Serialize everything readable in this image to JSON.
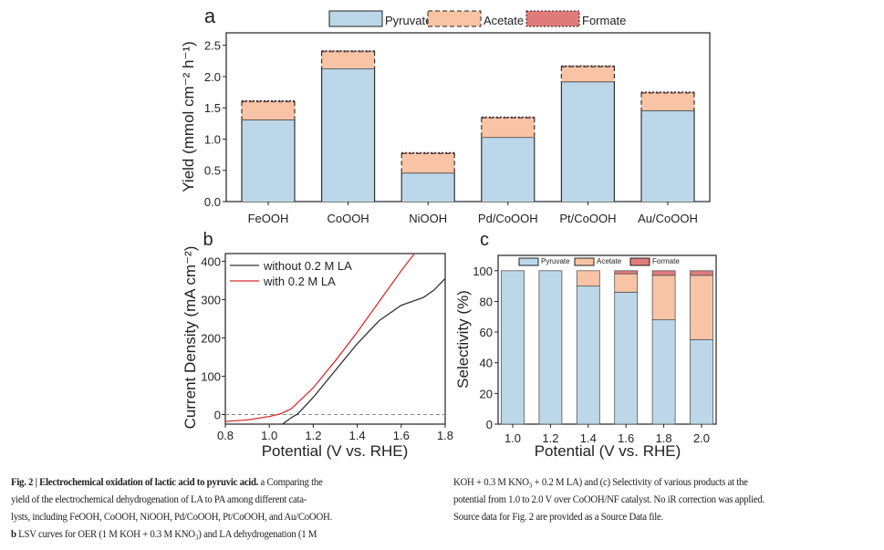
{
  "chart_data": [
    {
      "panel": "a",
      "type": "bar",
      "stacked": true,
      "categories": [
        "FeOOH",
        "CoOOH",
        "NiOOH",
        "Pd/CoOOH",
        "Pt/CoOOH",
        "Au/CoOOH"
      ],
      "series": [
        {
          "name": "Pyruvate",
          "values": [
            1.31,
            2.13,
            0.46,
            1.03,
            1.92,
            1.46
          ],
          "color": "#bcd8e8"
        },
        {
          "name": "Acetate",
          "values": [
            0.29,
            0.27,
            0.31,
            0.31,
            0.24,
            0.28
          ],
          "color": "#f9c4a6"
        },
        {
          "name": "Formate",
          "values": [
            0.01,
            0.01,
            0.01,
            0.01,
            0.01,
            0.01
          ],
          "color": "#e07b7b"
        }
      ],
      "ylabel": "Yield (mmol cm⁻² h⁻¹)",
      "ylim": [
        0,
        2.7
      ],
      "yticks": [
        "0.0",
        "0.5",
        "1.0",
        "1.5",
        "2.0",
        "2.5"
      ],
      "legend": "top"
    },
    {
      "panel": "b",
      "type": "line",
      "xlabel": "Potential (V vs. RHE)",
      "ylabel": "Current Density (mA cm⁻²)",
      "xlim": [
        0.8,
        1.8
      ],
      "ylim": [
        -25,
        420
      ],
      "xticks": [
        "0.8",
        "1.0",
        "1.2",
        "1.4",
        "1.6",
        "1.8"
      ],
      "yticks": [
        "0",
        "100",
        "200",
        "300",
        "400"
      ],
      "reference_line": 0,
      "legend": "top-left",
      "series": [
        {
          "name": "without 0.2 M LA",
          "color": "#333333",
          "x": [
            1.06,
            1.1,
            1.13,
            1.2,
            1.3,
            1.4,
            1.5,
            1.6,
            1.7,
            1.75,
            1.8
          ],
          "y": [
            -25,
            -8,
            2,
            45,
            115,
            185,
            245,
            285,
            305,
            325,
            355
          ]
        },
        {
          "name": "with 0.2 M LA",
          "color": "#d62f2f",
          "x": [
            0.8,
            0.9,
            1.0,
            1.05,
            1.1,
            1.2,
            1.3,
            1.4,
            1.5,
            1.6,
            1.66
          ],
          "y": [
            -18,
            -14,
            -5,
            2,
            15,
            70,
            140,
            215,
            295,
            375,
            420
          ]
        }
      ]
    },
    {
      "panel": "c",
      "type": "bar",
      "stacked": true,
      "categories": [
        "1.0",
        "1.2",
        "1.4",
        "1.6",
        "1.8",
        "2.0"
      ],
      "series": [
        {
          "name": "Pyruvate",
          "values": [
            100,
            100,
            90,
            86,
            68,
            55
          ],
          "color": "#bcd8e8"
        },
        {
          "name": "Acetate",
          "values": [
            0,
            0,
            10,
            12,
            29,
            42
          ],
          "color": "#f9c4a6"
        },
        {
          "name": "Formate",
          "values": [
            0,
            0,
            0,
            2,
            3,
            3
          ],
          "color": "#e07b7b"
        }
      ],
      "xlabel": "Potential (V vs. RHE)",
      "ylabel": "Selectivity (%)",
      "ylim": [
        0,
        110
      ],
      "yticks": [
        "0",
        "20",
        "40",
        "60",
        "80",
        "100"
      ],
      "legend": "top"
    }
  ],
  "caption": {
    "left": [
      {
        "bold": "Fig. 2 | Electrochemical oxidation of lactic acid to pyruvic acid.",
        "rest": " a Comparing the"
      },
      {
        "bold": "",
        "rest": "yield of the electrochemical dehydrogenation of LA to PA among different cata-"
      },
      {
        "bold": "",
        "rest": "lysts, including FeOOH, CoOOH, NiOOH, Pd/CoOOH, Pt/CoOOH, and Au/CoOOH."
      },
      {
        "bold": "b",
        "rest": " LSV curves for OER (1 M KOH + 0.3 M KNO₃) and LA dehydrogenation (1 M"
      }
    ],
    "right": [
      "KOH + 0.3 M KNO₃ + 0.2 M LA) and (c) Selectivity of various products at the",
      "potential from 1.0 to 2.0 V over CoOOH/NF catalyst. No iR correction was applied.",
      "Source data for Fig. 2 are provided as a Source Data file."
    ]
  }
}
